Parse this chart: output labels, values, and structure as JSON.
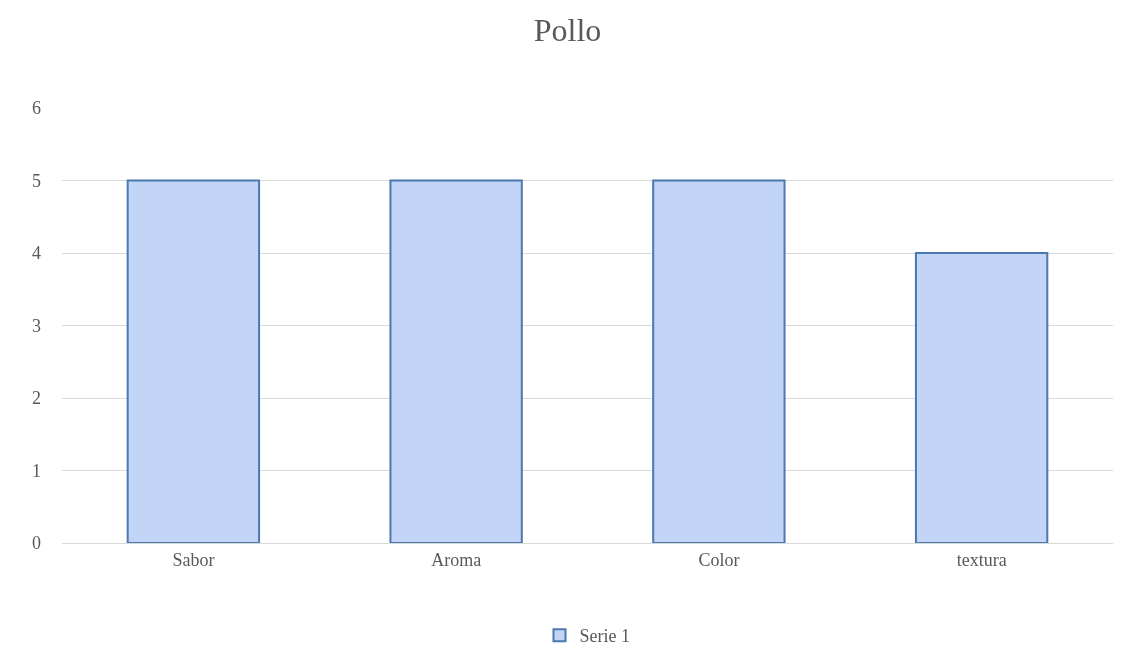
{
  "chart_data": {
    "type": "bar",
    "title": "Pollo",
    "categories": [
      "Sabor",
      "Aroma",
      "Color",
      "textura"
    ],
    "series": [
      {
        "name": "Serie 1",
        "color": "#c3d5f6",
        "values": [
          5,
          5,
          5,
          4
        ]
      }
    ],
    "ylim": [
      0,
      6
    ],
    "yticks": [
      0,
      1,
      2,
      3,
      4,
      5,
      6
    ],
    "grid": "y",
    "legend": "bottom"
  }
}
